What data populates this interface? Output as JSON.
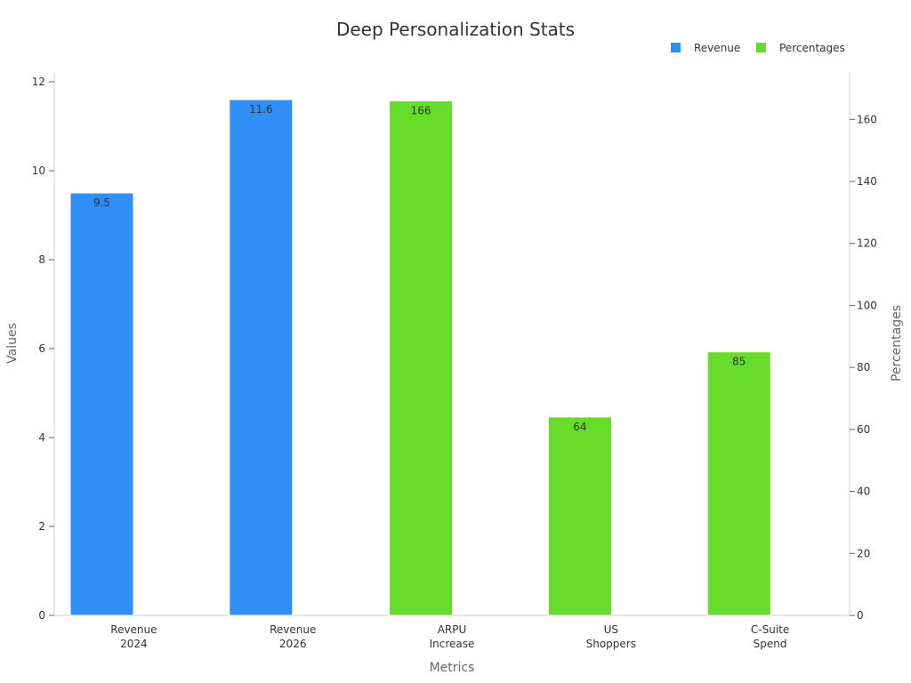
{
  "chart_data": {
    "type": "bar",
    "title": "Deep Personalization Stats",
    "xlabel": "Metrics",
    "ylabel": "Values",
    "y2label": "Percentages",
    "categories": [
      [
        "Revenue",
        "2024"
      ],
      [
        "Revenue",
        "2026"
      ],
      [
        "ARPU",
        "Increase"
      ],
      [
        "US",
        "Shoppers"
      ],
      [
        "C-Suite",
        "Spend"
      ]
    ],
    "series": [
      {
        "name": "Revenue",
        "axis": "left",
        "color": "#2f8ff7",
        "values": [
          9.5,
          11.6,
          null,
          null,
          null
        ],
        "labels": [
          "9.5",
          "11.6",
          null,
          null,
          null
        ]
      },
      {
        "name": "Percentages",
        "axis": "right",
        "color": "#66db29",
        "values": [
          null,
          null,
          166,
          64,
          85
        ],
        "labels": [
          null,
          null,
          "166",
          "64",
          "85"
        ]
      }
    ],
    "ylim": [
      0,
      12.2
    ],
    "y2lim": [
      0,
      175
    ],
    "yticks": [
      "0",
      "2",
      "4",
      "6",
      "8",
      "10",
      "12"
    ],
    "y2ticks": [
      "0",
      "20",
      "40",
      "60",
      "80",
      "100",
      "120",
      "140",
      "160"
    ],
    "legend_position": "top-right",
    "grid": false
  }
}
